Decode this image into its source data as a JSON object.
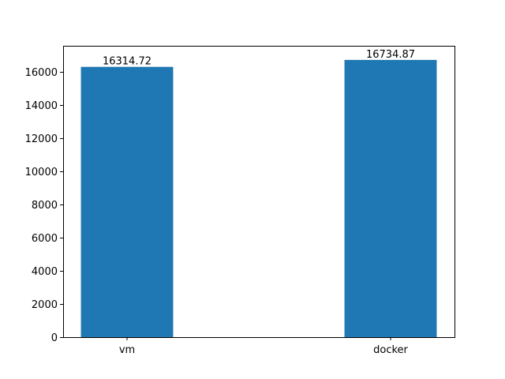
{
  "chart_data": {
    "type": "bar",
    "categories": [
      "vm",
      "docker"
    ],
    "values": [
      16314.72,
      16734.87
    ],
    "data_labels": [
      "16314.72",
      "16734.87"
    ],
    "title": "",
    "xlabel": "",
    "ylabel": "",
    "ylim": [
      0,
      17586.6
    ],
    "yticks": [
      0,
      2000,
      4000,
      6000,
      8000,
      10000,
      12000,
      14000,
      16000
    ],
    "ytick_labels": [
      "0",
      "2000",
      "4000",
      "6000",
      "8000",
      "10000",
      "12000",
      "14000",
      "16000"
    ],
    "grid": false,
    "legend": "none",
    "bar_color": "#1f77b4"
  }
}
